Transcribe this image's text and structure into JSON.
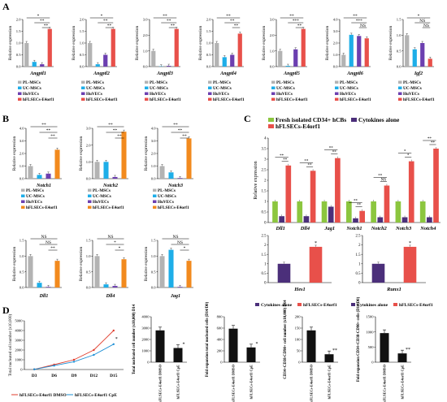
{
  "colors": {
    "pl": "#b3b3b3",
    "uc": "#1eaee8",
    "huvec": "#6c3fb0",
    "hfl": "#e8504a",
    "fresh": "#8cc63f",
    "cytokine": "#4b2f7a",
    "hfl_orange": "#f28a1e",
    "line_dmso": "#e03c2c",
    "line_cpe": "#1e90d6"
  },
  "chart_data": [
    {
      "panel": "A",
      "type": "bar",
      "ylabel": "Relative expression",
      "xlabel": "Angptl1",
      "categories": [
        "PL-MSCs",
        "UC-MSCs",
        "HuVECs",
        "hFLSECs-E4orf1"
      ],
      "values": [
        1.0,
        0.2,
        0.1,
        1.6
      ],
      "ylim": [
        0,
        2
      ],
      "yticks": [
        "0.0",
        "0.5",
        "1.0",
        "1.5",
        "2.0"
      ],
      "sig": [
        "*",
        "**",
        "**"
      ],
      "legend": [
        "PL-MSCs",
        "UC-MSCs",
        "HuVECs",
        "hFLSECs-E4orf1"
      ]
    },
    {
      "panel": "A",
      "type": "bar",
      "ylabel": "Relative expression",
      "xlabel": "Angptl2",
      "categories": [
        "PL-MSCs",
        "UC-MSCs",
        "HuVECs",
        "hFLSECs-E4orf1"
      ],
      "values": [
        1.0,
        0.1,
        0.5,
        1.6
      ],
      "ylim": [
        0,
        2
      ],
      "yticks": [
        "0.0",
        "0.5",
        "1.0",
        "1.5",
        "2.0"
      ],
      "sig": [
        "*",
        "**",
        "**"
      ],
      "legend": [
        "PL-MSCs",
        "UC-MSCs",
        "HuVECs",
        "hFLSECs-E4orf1"
      ]
    },
    {
      "panel": "A",
      "type": "bar",
      "ylabel": "Relative expression",
      "xlabel": "Angptl3",
      "categories": [
        "PL-MSCs",
        "UC-MSCs",
        "HuVECs",
        "hFLSECs-E4orf1"
      ],
      "values": [
        1.0,
        0.02,
        0.05,
        2.4
      ],
      "ylim": [
        0,
        3
      ],
      "yticks": [
        "0.0",
        "1.0",
        "2.0",
        "3.0"
      ],
      "sig": [
        "**",
        "**",
        "**"
      ],
      "legend": [
        "PL-MSCs",
        "UC-MSCs",
        "HuVECs",
        "hFLSECs-E4orf1"
      ]
    },
    {
      "panel": "A",
      "type": "bar",
      "ylabel": "Relative expression",
      "xlabel": "Angptl4",
      "categories": [
        "PL-MSCs",
        "UC-MSCs",
        "HuVECs",
        "hFLSECs-E4orf1"
      ],
      "values": [
        1.0,
        0.4,
        0.5,
        1.4
      ],
      "ylim": [
        0,
        2
      ],
      "yticks": [
        "0.0",
        "0.5",
        "1.0",
        "1.5",
        "2.0"
      ],
      "sig": [
        "**",
        "**",
        "**"
      ],
      "legend": [
        "PL-MSCs",
        "UC-MSCs",
        "HuVECs",
        "hFLSECs-E4orf1"
      ]
    },
    {
      "panel": "A",
      "type": "bar",
      "ylabel": "Relative expression",
      "xlabel": "Angptl5",
      "categories": [
        "PL-MSCs",
        "UC-MSCs",
        "HuVECs",
        "hFLSECs-E4orf1"
      ],
      "values": [
        1.0,
        0.05,
        1.1,
        2.4
      ],
      "ylim": [
        0,
        3
      ],
      "yticks": [
        "0.0",
        "1.0",
        "2.0",
        "3.0"
      ],
      "sig": [
        "**",
        "***",
        "**"
      ],
      "legend": [
        "PL-MSCs",
        "UC-MSCs",
        "HuVECs",
        "hFLSECs-E4orf1"
      ]
    },
    {
      "panel": "A",
      "type": "bar",
      "ylabel": "Relative expression",
      "xlabel": "Angptl6",
      "categories": [
        "PL-MSCs",
        "UC-MSCs",
        "HuVECs",
        "hFLSECs-E4orf1"
      ],
      "values": [
        1.0,
        2.7,
        2.6,
        2.4
      ],
      "ylim": [
        0,
        4
      ],
      "yticks": [
        "0.0",
        "1.0",
        "2.0",
        "3.0",
        "4.0"
      ],
      "sig": [
        "**",
        "***",
        "NS"
      ],
      "legend": [
        "PL-MSCs",
        "UC-MSCs",
        "HuVECs",
        "hFLSECs-E4orf1"
      ]
    },
    {
      "panel": "A",
      "type": "bar",
      "ylabel": "Relative expression",
      "xlabel": "Igf2",
      "categories": [
        "PL-MSCs",
        "UC-MSCs",
        "HuVECs",
        "hFLSECs-E4orf1"
      ],
      "values": [
        1.0,
        0.55,
        0.75,
        0.25
      ],
      "ylim": [
        0,
        1.5
      ],
      "yticks": [
        "0.0",
        "0.5",
        "1.0",
        "1.5"
      ],
      "sig": [
        "*",
        "NS",
        "NS"
      ],
      "legend": [
        "PL-MSCs",
        "UC-MSCs",
        "HuVECs",
        "hFLSECs-E4orf1"
      ]
    },
    {
      "panel": "B",
      "type": "bar",
      "ylabel": "Relative expression",
      "xlabel": "Notch1",
      "categories": [
        "PL-MSCs",
        "UC-MSCs",
        "HuVECs",
        "hFLSECs-E4orf1"
      ],
      "values": [
        1.0,
        0.3,
        0.4,
        2.3
      ],
      "ylim": [
        0,
        4
      ],
      "yticks": [
        "0.0",
        "1.0",
        "2.0",
        "3.0",
        "4.0"
      ],
      "sig": [
        "**",
        "**",
        "**"
      ],
      "legend": [
        "PL-MSCs",
        "UC-MSCs",
        "HuVECs",
        "hFLSECs-E4orf1"
      ]
    },
    {
      "panel": "B",
      "type": "bar",
      "ylabel": "Relative expression",
      "xlabel": "Notch2",
      "categories": [
        "PL-MSCs",
        "UC-MSCs",
        "HuVECs",
        "hFLSECs-E4orf1"
      ],
      "values": [
        1.0,
        1.0,
        0.1,
        2.8
      ],
      "ylim": [
        0,
        3
      ],
      "yticks": [
        "0.0",
        "1.0",
        "2.0",
        "3.0"
      ],
      "sig": [
        "**",
        "**",
        "**"
      ],
      "legend": [
        "PL-MSCs",
        "UC-MSCs",
        "HuVECs",
        "hFLSECs-E4orf1"
      ]
    },
    {
      "panel": "B",
      "type": "bar",
      "ylabel": "Relative expression",
      "xlabel": "Notch3",
      "categories": [
        "PL-MSCs",
        "UC-MSCs",
        "HuVECs",
        "hFLSECs-E4orf1"
      ],
      "values": [
        1.0,
        0.5,
        0.05,
        3.2
      ],
      "ylim": [
        0,
        4
      ],
      "yticks": [
        "0.0",
        "1.0",
        "2.0",
        "3.0",
        "4.0"
      ],
      "sig": [
        "**",
        "**",
        "**"
      ],
      "legend": [
        "PL-MSCs",
        "UC-MSCs",
        "HuVECs",
        "hFLSECs-E4orf1"
      ]
    },
    {
      "panel": "B",
      "type": "bar",
      "ylabel": "Relative expression",
      "xlabel": "Dll1",
      "categories": [
        "PL-MSCs",
        "UC-MSCs",
        "HuVECs",
        "hFLSECs-E4orf1"
      ],
      "values": [
        1.0,
        0.15,
        0.02,
        0.85
      ],
      "ylim": [
        0,
        1.5
      ],
      "yticks": [
        "0.0",
        "0.5",
        "1.0",
        "1.5"
      ],
      "sig": [
        "NS",
        "NS",
        "**"
      ],
      "legend": [
        "PL-MSCs",
        "UC-MSCs",
        "HuVECs",
        "hFLSECs-E4orf1"
      ]
    },
    {
      "panel": "B",
      "type": "bar",
      "ylabel": "Relative expression",
      "xlabel": "Dll4",
      "categories": [
        "PL-MSCs",
        "UC-MSCs",
        "HuVECs",
        "hFLSECs-E4orf1"
      ],
      "values": [
        1.0,
        0.1,
        0.05,
        0.9
      ],
      "ylim": [
        0,
        1.5
      ],
      "yticks": [
        "0.0",
        "0.5",
        "1.0",
        "1.5"
      ],
      "sig": [
        "NS",
        "*",
        "*"
      ],
      "legend": [
        "PL-MSCs",
        "UC-MSCs",
        "HuVECs",
        "hFLSECs-E4orf1"
      ]
    },
    {
      "panel": "B",
      "type": "bar",
      "ylabel": "Relative expression",
      "xlabel": "Jag1",
      "categories": [
        "PL-MSCs",
        "UC-MSCs",
        "HuVECs",
        "hFLSECs-E4orf1"
      ],
      "values": [
        1.0,
        1.2,
        0.02,
        0.85
      ],
      "ylim": [
        0,
        1.5
      ],
      "yticks": [
        "0.0",
        "0.5",
        "1.0",
        "1.5"
      ],
      "sig": [
        "NS",
        "NS",
        "*"
      ],
      "legend": [
        "PL-MSCs",
        "UC-MSCs",
        "HuVECs",
        "hFLSECs-E4orf1"
      ]
    },
    {
      "panel": "C",
      "type": "bar",
      "ylabel": "Relative expression",
      "categories": [
        "Dll1",
        "Dll4",
        "Jag1",
        "Notch1",
        "Notch2",
        "Notch3",
        "Notch4"
      ],
      "series": [
        {
          "name": "Fresh isolated CD34+ hCBs",
          "values": [
            1.0,
            1.0,
            1.0,
            1.0,
            1.0,
            1.0,
            1.0
          ]
        },
        {
          "name": "Cytokines alone",
          "values": [
            0.3,
            0.3,
            0.75,
            0.2,
            0.25,
            0.25,
            0.25
          ]
        },
        {
          "name": "hFLSECs-E4orf1",
          "values": [
            2.7,
            2.45,
            3.05,
            0.55,
            1.75,
            2.9,
            3.5
          ]
        }
      ],
      "ylim": [
        0,
        4
      ],
      "yticks": [
        "0",
        "0.5",
        "1",
        "1.5",
        "2",
        "2.5",
        "3",
        "3.5",
        "4"
      ],
      "sig": [
        "**",
        "**",
        "**",
        "**",
        "**",
        "**",
        "**",
        "**",
        "**",
        "NS",
        "*",
        "*",
        "**",
        "**",
        "**",
        "**"
      ]
    },
    {
      "panel": "C",
      "type": "bar",
      "xlabel": "Hes1",
      "categories": [
        "Cytokines alone",
        "hFLSECs-E4orf1"
      ],
      "values": [
        1.0,
        1.9
      ],
      "ylim": [
        0,
        2.5
      ],
      "yticks": [
        "0",
        "0.5",
        "1",
        "1.5",
        "2",
        "2.5"
      ],
      "sig": [
        "*"
      ],
      "legend": [
        "Cytokines alone",
        "hFLSECs-E4orf1"
      ]
    },
    {
      "panel": "C",
      "type": "bar",
      "xlabel": "Runx1",
      "categories": [
        "Cytokines alone",
        "hFLSECs-E4orf1"
      ],
      "values": [
        1.0,
        1.9
      ],
      "ylim": [
        0,
        2.5
      ],
      "yticks": [
        "0",
        "0.5",
        "1",
        "1.5",
        "2",
        "2.5"
      ],
      "sig": [
        "*"
      ],
      "legend": [
        "Cytokines alone",
        "hFLSECs-E4orf1"
      ]
    },
    {
      "panel": "D",
      "type": "line",
      "ylabel": "Total nucleated cell number (x10,000)",
      "categories": [
        "D3",
        "D6",
        "D9",
        "D12",
        "D15"
      ],
      "series": [
        {
          "name": "hFLSECs-E4orf1 DMSO",
          "values": [
            20,
            500,
            1000,
            2000,
            4000
          ]
        },
        {
          "name": "hFLSECs-E4orf1 CpE",
          "values": [
            20,
            400,
            800,
            1500,
            2600
          ]
        }
      ],
      "ylim": [
        0,
        5000
      ],
      "yticks": [
        "0",
        "1000",
        "2000",
        "3000",
        "4000",
        "5000"
      ],
      "sig": [
        "*"
      ]
    },
    {
      "panel": "D",
      "type": "bar",
      "ylabel": "Total nucleated cell number (x10,000) D14",
      "categories": [
        "hFLSECs-E4orf1 DMSO",
        "hFLSECs-E4orf1 CpE"
      ],
      "values": [
        2800,
        1250
      ],
      "ylim": [
        0,
        4000
      ],
      "yticks": [
        "0",
        "1000",
        "2000",
        "3000",
        "4000"
      ],
      "sig": [
        "*"
      ]
    },
    {
      "panel": "D",
      "type": "bar",
      "ylabel": "Fold expansion total nucleated cells (D14/D0)",
      "categories": [
        "hFLSECs-E4orf1 DMSO",
        "hFLSECs-E4orf1 CpE"
      ],
      "values": [
        590,
        260
      ],
      "ylim": [
        0,
        800
      ],
      "yticks": [
        "0",
        "200",
        "400",
        "600",
        "800"
      ],
      "sig": [
        "*"
      ]
    },
    {
      "panel": "D",
      "type": "bar",
      "ylabel": "CD34+CD38-CD90+ cell number (x10,000) D14",
      "categories": [
        "hFLSECs-E4orf1 DMSO",
        "hFLSECs-E4orf1 CpE"
      ],
      "values": [
        140,
        35
      ],
      "ylim": [
        0,
        200
      ],
      "yticks": [
        "0",
        "50",
        "100",
        "150",
        "200"
      ],
      "sig": [
        "**"
      ]
    },
    {
      "panel": "D",
      "type": "bar",
      "ylabel": "Fold expansion CD34+CD38-CD90+ cells (D14/D0)",
      "categories": [
        "hFLSECs-E4orf1 DMSO",
        "hFLSECs-E4orf1 CpE"
      ],
      "values": [
        960,
        290
      ],
      "ylim": [
        0,
        1500
      ],
      "yticks": [
        "0",
        "500",
        "1000",
        "1500"
      ],
      "sig": [
        "**"
      ]
    }
  ]
}
